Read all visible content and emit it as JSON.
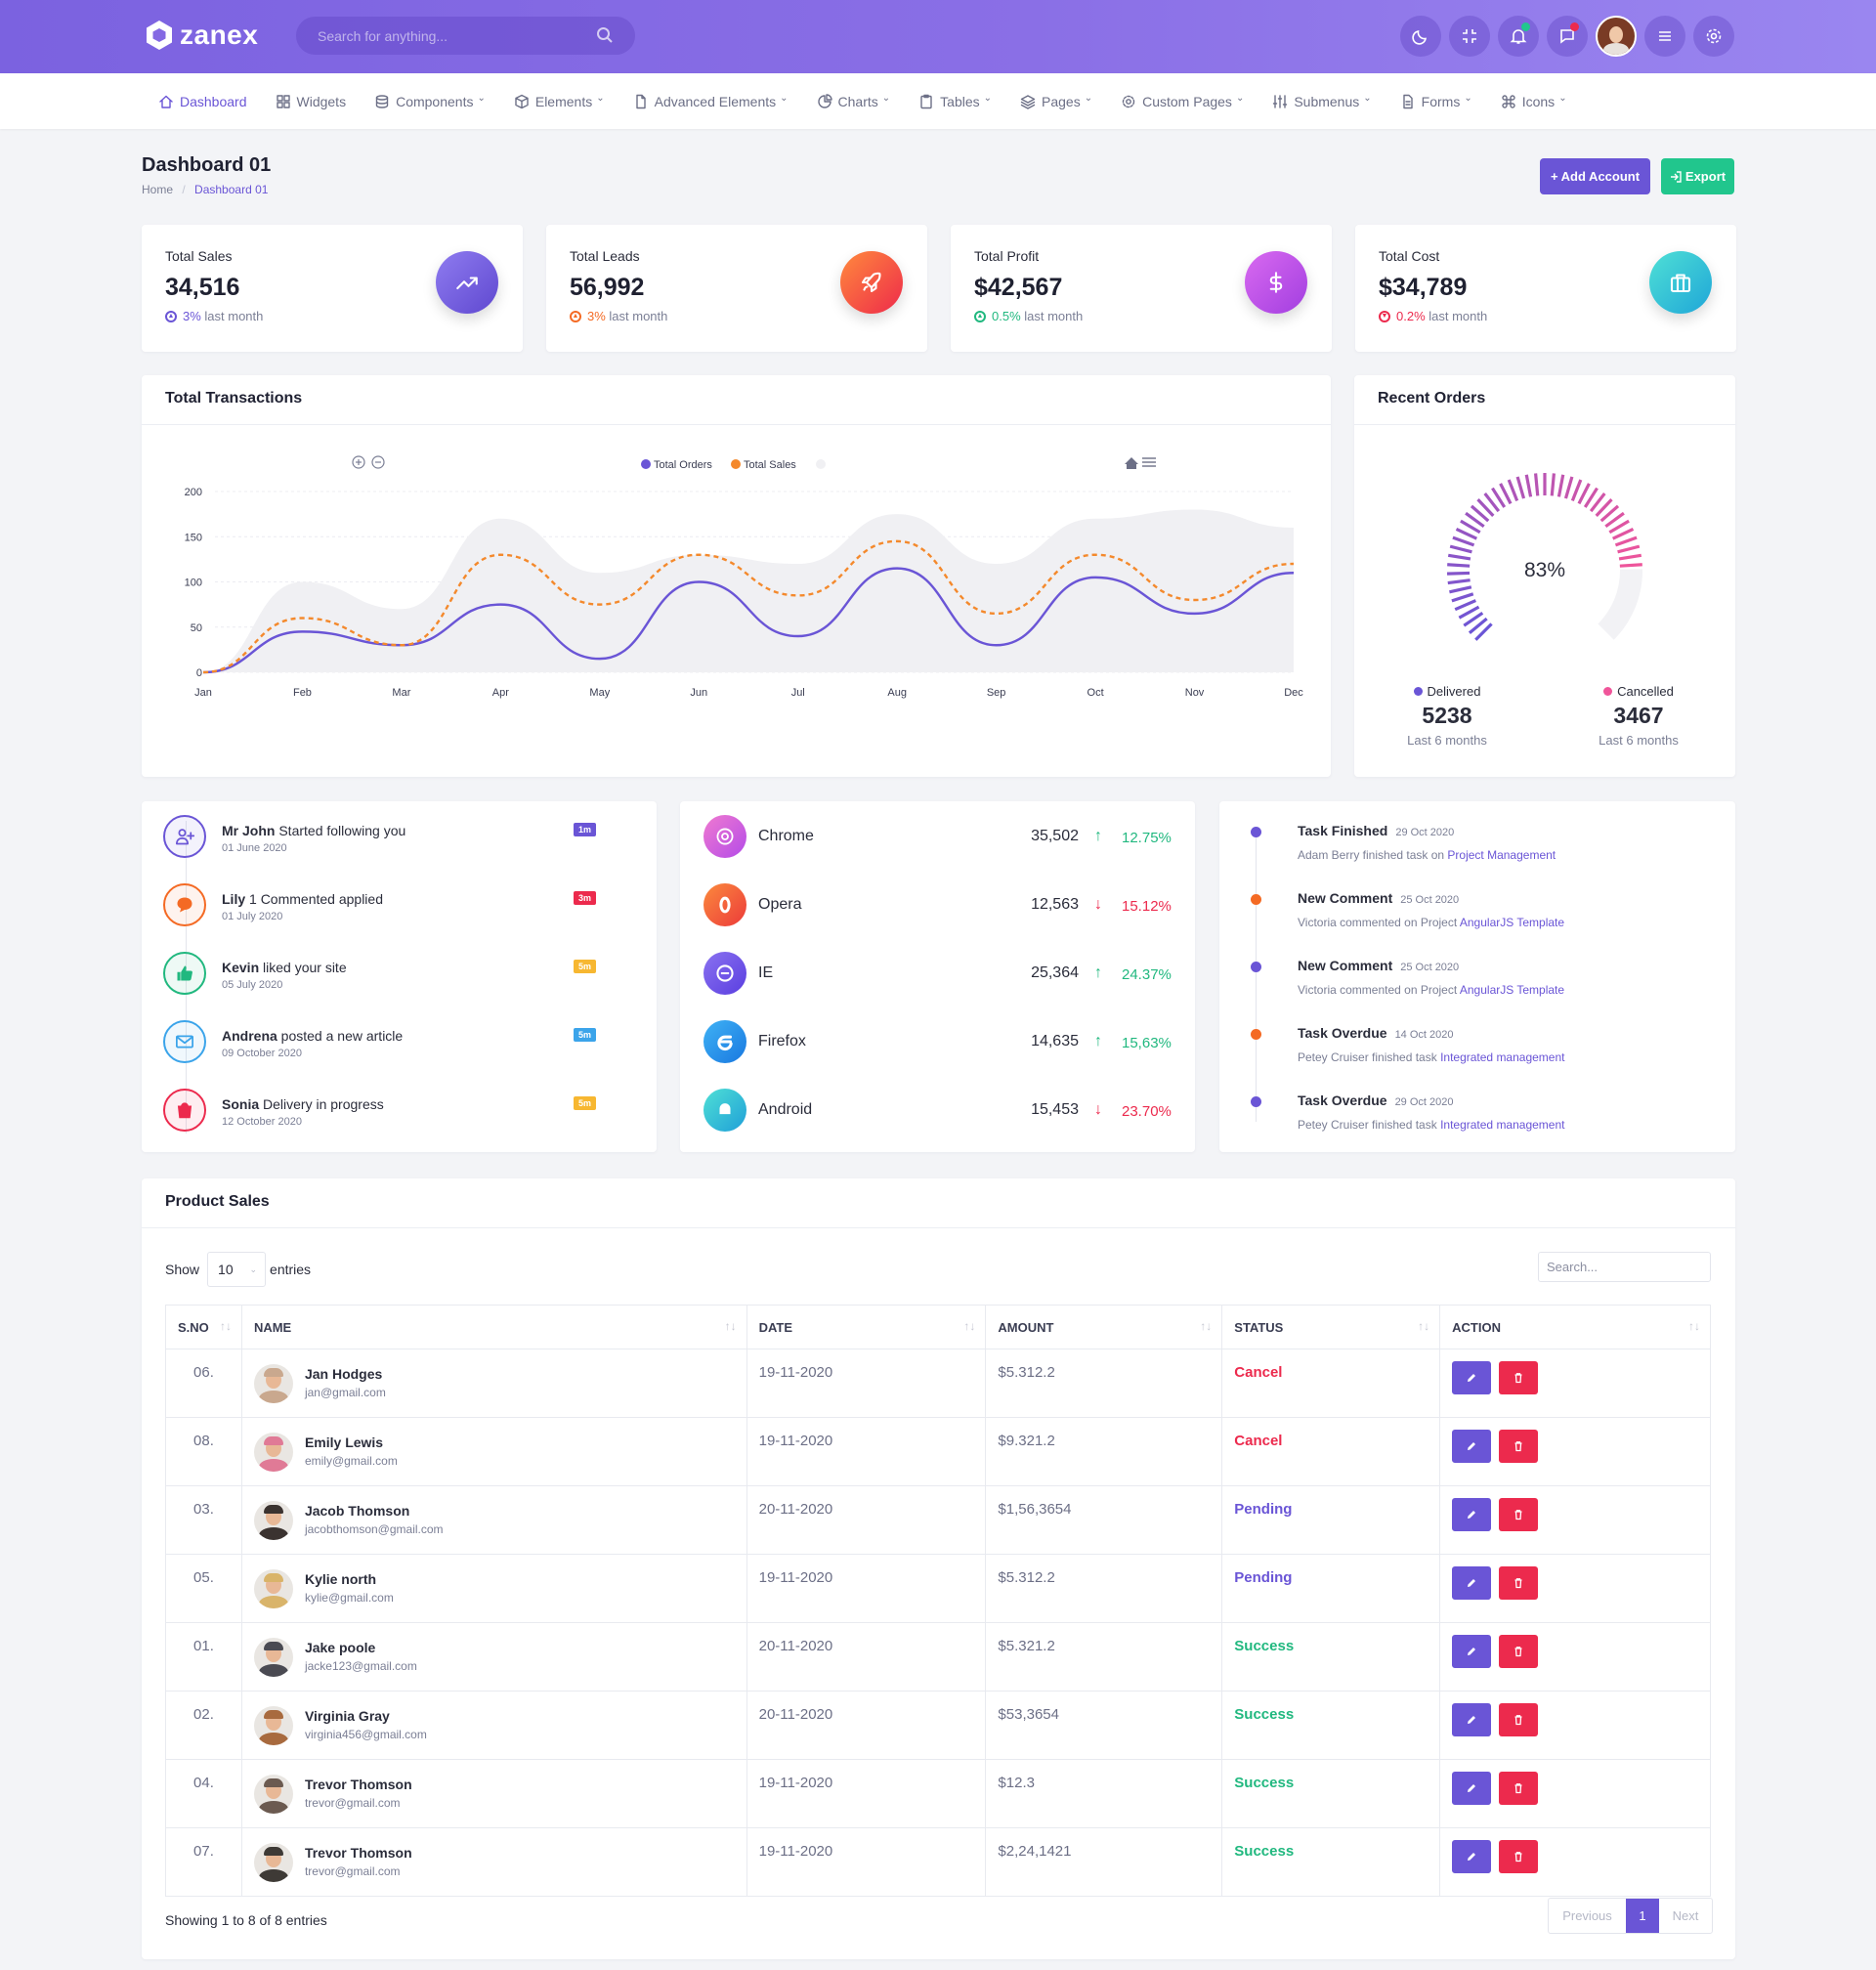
{
  "header": {
    "brand": "zanex",
    "search_placeholder": "Search for anything..."
  },
  "nav": [
    {
      "label": "Dashboard",
      "icon": "home-icon",
      "dropdown": false,
      "active": true
    },
    {
      "label": "Widgets",
      "icon": "grid-icon",
      "dropdown": false,
      "active": false
    },
    {
      "label": "Components",
      "icon": "database-icon",
      "dropdown": true,
      "active": false
    },
    {
      "label": "Elements",
      "icon": "box-icon",
      "dropdown": true,
      "active": false
    },
    {
      "label": "Advanced Elements",
      "icon": "file-icon",
      "dropdown": true,
      "active": false
    },
    {
      "label": "Charts",
      "icon": "pie-chart-icon",
      "dropdown": true,
      "active": false
    },
    {
      "label": "Tables",
      "icon": "clipboard-icon",
      "dropdown": true,
      "active": false
    },
    {
      "label": "Pages",
      "icon": "layers-icon",
      "dropdown": true,
      "active": false
    },
    {
      "label": "Custom Pages",
      "icon": "gear-icon",
      "dropdown": true,
      "active": false
    },
    {
      "label": "Submenus",
      "icon": "sliders-icon",
      "dropdown": true,
      "active": false
    },
    {
      "label": "Forms",
      "icon": "document-icon",
      "dropdown": true,
      "active": false
    },
    {
      "label": "Icons",
      "icon": "command-icon",
      "dropdown": true,
      "active": false
    }
  ],
  "page": {
    "title": "Dashboard 01",
    "breadcrumb_home": "Home",
    "breadcrumb_current": "Dashboard 01",
    "add_account": "+ Add Account",
    "export": "Export"
  },
  "stats": [
    {
      "title": "Total Sales",
      "value": "34,516",
      "change": "3%",
      "change_suffix": " last month",
      "change_color": "#6a55d6",
      "icon": "trending-up-icon"
    },
    {
      "title": "Total Leads",
      "value": "56,992",
      "change": "3%",
      "change_suffix": " last month",
      "change_color": "#f46a24",
      "icon": "rocket-icon"
    },
    {
      "title": "Total Profit",
      "value": "$42,567",
      "change": "0.5%",
      "change_suffix": " last month",
      "change_color": "#21b87f",
      "icon": "dollar-icon"
    },
    {
      "title": "Total Cost",
      "value": "$34,789",
      "change": "0.2%",
      "change_suffix": " last month",
      "change_color": "#ec2a4d",
      "icon": "briefcase-icon"
    }
  ],
  "transactions": {
    "title": "Total Transactions"
  },
  "chart_data": {
    "type": "line",
    "categories": [
      "Jan",
      "Feb",
      "Mar",
      "Apr",
      "May",
      "Jun",
      "Jul",
      "Aug",
      "Sep",
      "Oct",
      "Nov",
      "Dec"
    ],
    "series": [
      {
        "name": "Total Orders",
        "color": "#6a55d6",
        "dashed": false,
        "values": [
          0,
          45,
          30,
          75,
          15,
          100,
          40,
          115,
          30,
          105,
          65,
          110
        ]
      },
      {
        "name": "Total Sales",
        "color": "#f4892c",
        "dashed": true,
        "values": [
          0,
          60,
          30,
          130,
          75,
          130,
          85,
          145,
          65,
          130,
          80,
          120
        ]
      },
      {
        "name": "",
        "color": "#f0f0f3",
        "values": [
          0,
          100,
          70,
          170,
          110,
          130,
          120,
          175,
          120,
          170,
          180,
          160
        ]
      }
    ],
    "ylim": [
      0,
      200
    ],
    "yticks": [
      0,
      50,
      100,
      150,
      200
    ],
    "grid": true,
    "legend": "top-center"
  },
  "recent_orders": {
    "title": "Recent Orders",
    "percent": "83%",
    "percent_value": 83,
    "delivered_label": "Delivered",
    "delivered": "5238",
    "cancelled_label": "Cancelled",
    "cancelled": "3467",
    "period": "Last 6 months"
  },
  "feed": [
    {
      "name": "Mr John",
      "text": " Started following you",
      "date": "01 June 2020",
      "badge": "1m",
      "color": "#6a55d6",
      "badge_color": "#6a55d6",
      "icon": "user-plus-icon"
    },
    {
      "name": "Lily",
      "text": " 1 Commented applied",
      "date": "01 July 2020",
      "badge": "3m",
      "color": "#f46a24",
      "badge_color": "#ec2a4d",
      "icon": "comment-icon"
    },
    {
      "name": "Kevin",
      "text": " liked your site",
      "date": "05 July 2020",
      "badge": "5m",
      "color": "#21b87f",
      "badge_color": "#f7b731",
      "icon": "thumbs-up-icon"
    },
    {
      "name": "Andrena",
      "text": " posted a new article",
      "date": "09 October 2020",
      "badge": "5m",
      "color": "#3ba4ea",
      "badge_color": "#3ba4ea",
      "icon": "mail-icon"
    },
    {
      "name": "Sonia",
      "text": " Delivery in progress",
      "date": "12 October 2020",
      "badge": "5m",
      "color": "#ec2a4d",
      "badge_color": "#f7b731",
      "icon": "shopping-bag-icon"
    }
  ],
  "browsers": [
    {
      "name": "Chrome",
      "value": "35,502",
      "pct": "12.75%",
      "up": true,
      "color1": "#f07ad0",
      "color2": "#b44be8",
      "icon": "chrome-icon"
    },
    {
      "name": "Opera",
      "value": "12,563",
      "pct": "15.12%",
      "up": false,
      "color1": "#fb8a3d",
      "color2": "#ec3a3a",
      "icon": "opera-icon"
    },
    {
      "name": "IE",
      "value": "25,364",
      "pct": "24.37%",
      "up": true,
      "color1": "#8a72f0",
      "color2": "#5a3ee0",
      "icon": "ie-icon"
    },
    {
      "name": "Firefox",
      "value": "14,635",
      "pct": "15,63%",
      "up": true,
      "color1": "#3fb2f5",
      "color2": "#1978e0",
      "icon": "firefox-icon"
    },
    {
      "name": "Android",
      "value": "15,453",
      "pct": "23.70%",
      "up": false,
      "color1": "#4fe0d5",
      "color2": "#1f9fd8",
      "icon": "android-icon"
    }
  ],
  "timeline": [
    {
      "title": "Task Finished",
      "date": "29 Oct 2020",
      "desc": "Adam Berry finished task on ",
      "link": "Project Management",
      "color": "#6a55d6"
    },
    {
      "title": "New Comment",
      "date": "25 Oct 2020",
      "desc": "Victoria commented on Project ",
      "link": "AngularJS Template",
      "color": "#f46a24"
    },
    {
      "title": "New Comment",
      "date": "25 Oct 2020",
      "desc": "Victoria commented on Project ",
      "link": "AngularJS Template",
      "color": "#6a55d6"
    },
    {
      "title": "Task Overdue",
      "date": "14 Oct 2020",
      "desc": "Petey Cruiser finished task ",
      "link": "Integrated management",
      "color": "#f46a24"
    },
    {
      "title": "Task Overdue",
      "date": "29 Oct 2020",
      "desc": "Petey Cruiser finished task ",
      "link": "Integrated management",
      "color": "#6a55d6"
    }
  ],
  "products": {
    "title": "Product Sales",
    "show": "Show",
    "entries_value": "10",
    "entries": "entries",
    "search_placeholder": "Search...",
    "columns": [
      "S.NO",
      "NAME",
      "DATE",
      "AMOUNT",
      "STATUS",
      "ACTION"
    ],
    "rows": [
      {
        "sno": "06.",
        "name": "Jan Hodges",
        "email": "jan@gmail.com",
        "date": "19-11-2020",
        "amount": "$5.312.2",
        "status": "Cancel",
        "status_class": "st-red",
        "avatar": "#c9a88e"
      },
      {
        "sno": "08.",
        "name": "Emily Lewis",
        "email": "emily@gmail.com",
        "date": "19-11-2020",
        "amount": "$9.321.2",
        "status": "Cancel",
        "status_class": "st-red",
        "avatar": "#e07a96"
      },
      {
        "sno": "03.",
        "name": "Jacob Thomson",
        "email": "jacobthomson@gmail.com",
        "date": "20-11-2020",
        "amount": "$1,56,3654",
        "status": "Pending",
        "status_class": "st-purple",
        "avatar": "#3b3330"
      },
      {
        "sno": "05.",
        "name": "Kylie north",
        "email": "kylie@gmail.com",
        "date": "19-11-2020",
        "amount": "$5.312.2",
        "status": "Pending",
        "status_class": "st-purple",
        "avatar": "#d9b46a"
      },
      {
        "sno": "01.",
        "name": "Jake poole",
        "email": "jacke123@gmail.com",
        "date": "20-11-2020",
        "amount": "$5.321.2",
        "status": "Success",
        "status_class": "st-green",
        "avatar": "#4a4a52"
      },
      {
        "sno": "02.",
        "name": "Virginia Gray",
        "email": "virginia456@gmail.com",
        "date": "20-11-2020",
        "amount": "$53,3654",
        "status": "Success",
        "status_class": "st-green",
        "avatar": "#a86a3e"
      },
      {
        "sno": "04.",
        "name": "Trevor Thomson",
        "email": "trevor@gmail.com",
        "date": "19-11-2020",
        "amount": "$12.3",
        "status": "Success",
        "status_class": "st-green",
        "avatar": "#6b5a50"
      },
      {
        "sno": "07.",
        "name": "Trevor Thomson",
        "email": "trevor@gmail.com",
        "date": "19-11-2020",
        "amount": "$2,24,1421",
        "status": "Success",
        "status_class": "st-green",
        "avatar": "#3e3a36"
      }
    ],
    "showing": "Showing 1 to 8 of 8 entries",
    "prev": "Previous",
    "page": "1",
    "next": "Next"
  }
}
